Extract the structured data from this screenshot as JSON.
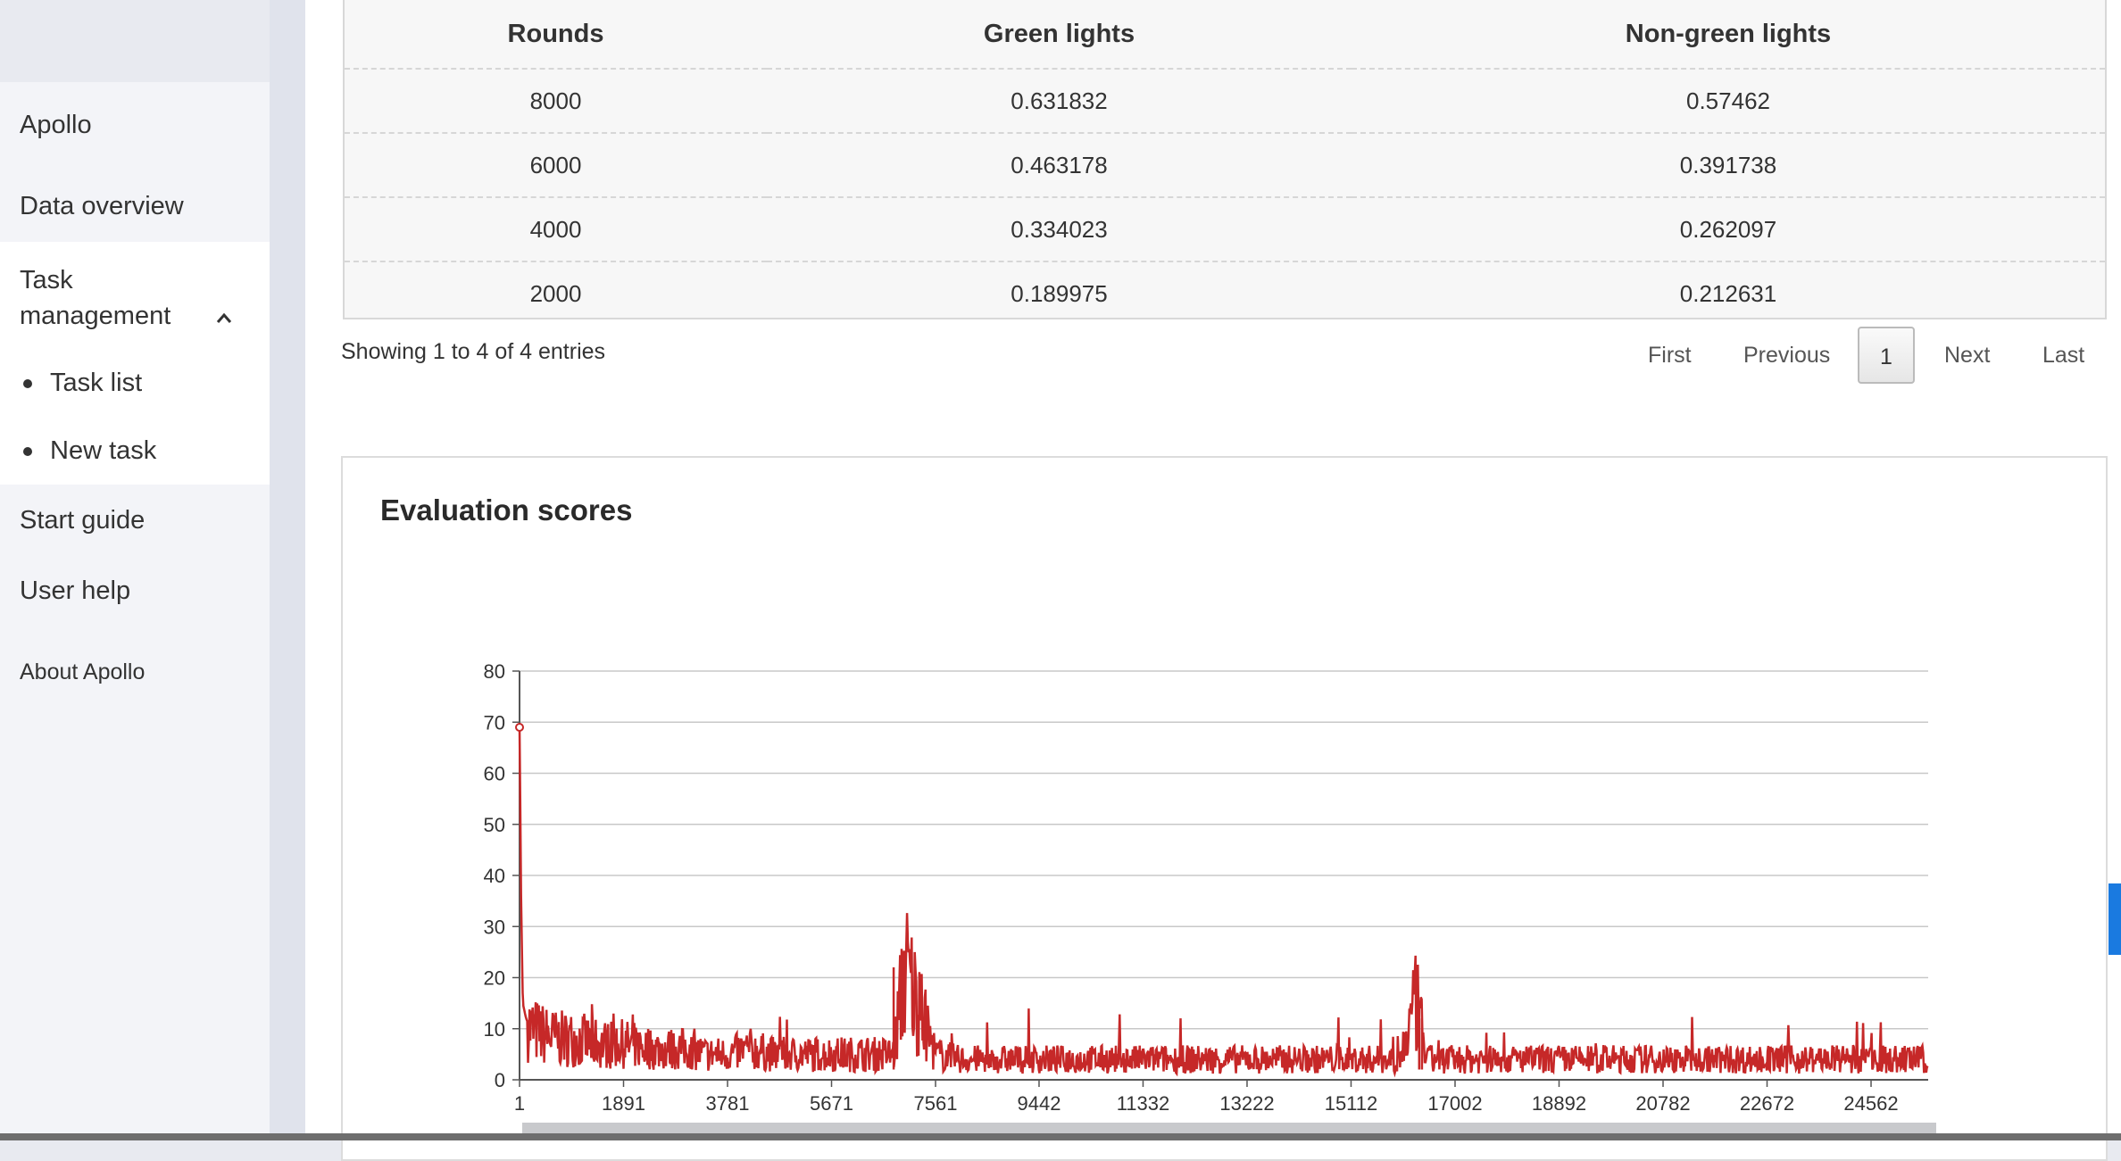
{
  "sidebar": {
    "items": [
      {
        "label": "Apollo"
      },
      {
        "label": "Data overview"
      },
      {
        "label": "Task management"
      },
      {
        "label": "Task list"
      },
      {
        "label": "New task"
      },
      {
        "label": "Start guide"
      },
      {
        "label": "User help"
      },
      {
        "label": "About Apollo"
      }
    ],
    "task_management_line1": "Task",
    "task_management_line2": "management",
    "expanded_icon": "chevron-up-icon"
  },
  "table": {
    "headers": [
      "Rounds",
      "Green lights",
      "Non-green lights"
    ],
    "rows": [
      [
        "8000",
        "0.631832",
        "0.57462"
      ],
      [
        "6000",
        "0.463178",
        "0.391738"
      ],
      [
        "4000",
        "0.334023",
        "0.262097"
      ],
      [
        "2000",
        "0.189975",
        "0.212631"
      ]
    ]
  },
  "pagination": {
    "summary": "Showing 1 to 4 of 4 entries",
    "first": "First",
    "previous": "Previous",
    "current": "1",
    "next": "Next",
    "last": "Last"
  },
  "chart_panel": {
    "title": "Evaluation scores"
  },
  "chart_data": {
    "type": "line",
    "title": "Evaluation scores",
    "xlabel": "",
    "ylabel": "",
    "x_ticks": [
      "1",
      "1891",
      "3781",
      "5671",
      "7561",
      "9442",
      "11332",
      "13222",
      "15112",
      "17002",
      "18892",
      "20782",
      "22672",
      "24562"
    ],
    "y_ticks": [
      0,
      10,
      20,
      30,
      40,
      50,
      60,
      70,
      80
    ],
    "xlim": [
      1,
      25600
    ],
    "ylim": [
      0,
      80
    ],
    "grid": true,
    "series": [
      {
        "color": "#c62828",
        "x": [
          1,
          30,
          60,
          120,
          200,
          400,
          700,
          1000,
          1500,
          1891,
          2500,
          3000,
          3400,
          3781,
          4200,
          4600,
          5000,
          5671,
          6000,
          6500,
          6800,
          7000,
          7561,
          8000,
          9000,
          9442,
          10000,
          11000,
          11332,
          12000,
          13222,
          14000,
          15112,
          16000,
          16300,
          16500,
          17002,
          18000,
          18892,
          19500,
          20782,
          21500,
          22672,
          23500,
          24200,
          24562,
          25400
        ],
        "y": [
          69,
          35,
          15,
          12,
          10,
          9,
          8,
          8,
          7,
          7,
          6,
          6,
          5,
          5,
          6,
          5,
          5,
          5,
          5,
          5,
          5,
          22,
          5,
          4,
          4,
          4,
          4,
          4,
          4,
          4,
          4,
          4,
          4,
          4,
          15,
          4,
          4,
          4,
          4,
          4,
          4,
          4,
          4,
          4,
          4,
          4,
          4
        ]
      }
    ]
  },
  "colors": {
    "accent": "#c62828",
    "sidebar_bg": "#f3f4f8",
    "scroll_marker": "#1a7ae0"
  }
}
